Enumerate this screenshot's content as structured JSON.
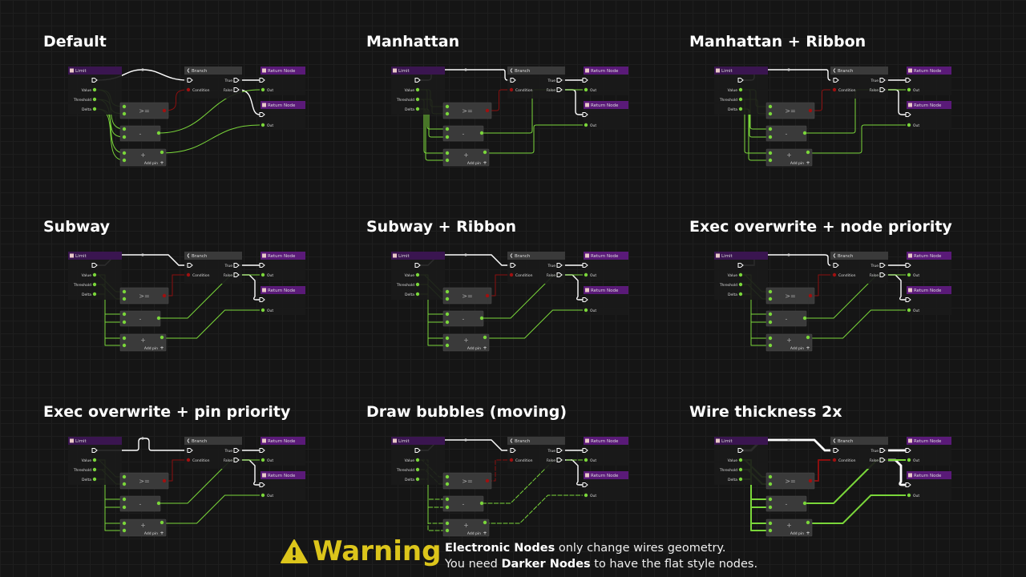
{
  "panels": [
    {
      "title": "Default",
      "style": "bezier"
    },
    {
      "title": "Manhattan",
      "style": "manhattan"
    },
    {
      "title": "Manhattan + Ribbon",
      "style": "manhattan-ribbon"
    },
    {
      "title": "Subway",
      "style": "subway"
    },
    {
      "title": "Subway + Ribbon",
      "style": "subway-ribbon"
    },
    {
      "title": "Exec overwrite + node priority",
      "style": "subway-exec-node"
    },
    {
      "title": "Exec overwrite + pin priority",
      "style": "subway-exec-pin"
    },
    {
      "title": "Draw bubbles (moving)",
      "style": "subway-bubbles"
    },
    {
      "title": "Wire thickness 2x",
      "style": "subway-thick"
    }
  ],
  "nodes": {
    "limit": "Limit",
    "branch": "Branch",
    "return": "Return Node",
    "pins": {
      "value": "Value",
      "threshold": "Threshold",
      "delta": "Delta",
      "condition": "Condition",
      "true": "True",
      "false": "False",
      "out": "Out"
    },
    "ops": {
      "gte": ">=",
      "sub": "-",
      "add": "+"
    },
    "add_pin": "Add pin"
  },
  "colors": {
    "exec": "#ffffff",
    "float": "#7ad63a",
    "bool": "#8a0f0f",
    "limit_header": "#3a1550",
    "return_header": "#5a1a78",
    "branch_header": "#3a3a3a",
    "warning": "#dcc51b"
  },
  "warning": {
    "icon": "warning-triangle-icon",
    "label": "Warning",
    "line1_bold": "Electronic Nodes",
    "line1_rest": " only change wires geometry.",
    "line2_start": "You need ",
    "line2_bold": "Darker Nodes",
    "line2_rest": " to have the flat style nodes."
  }
}
